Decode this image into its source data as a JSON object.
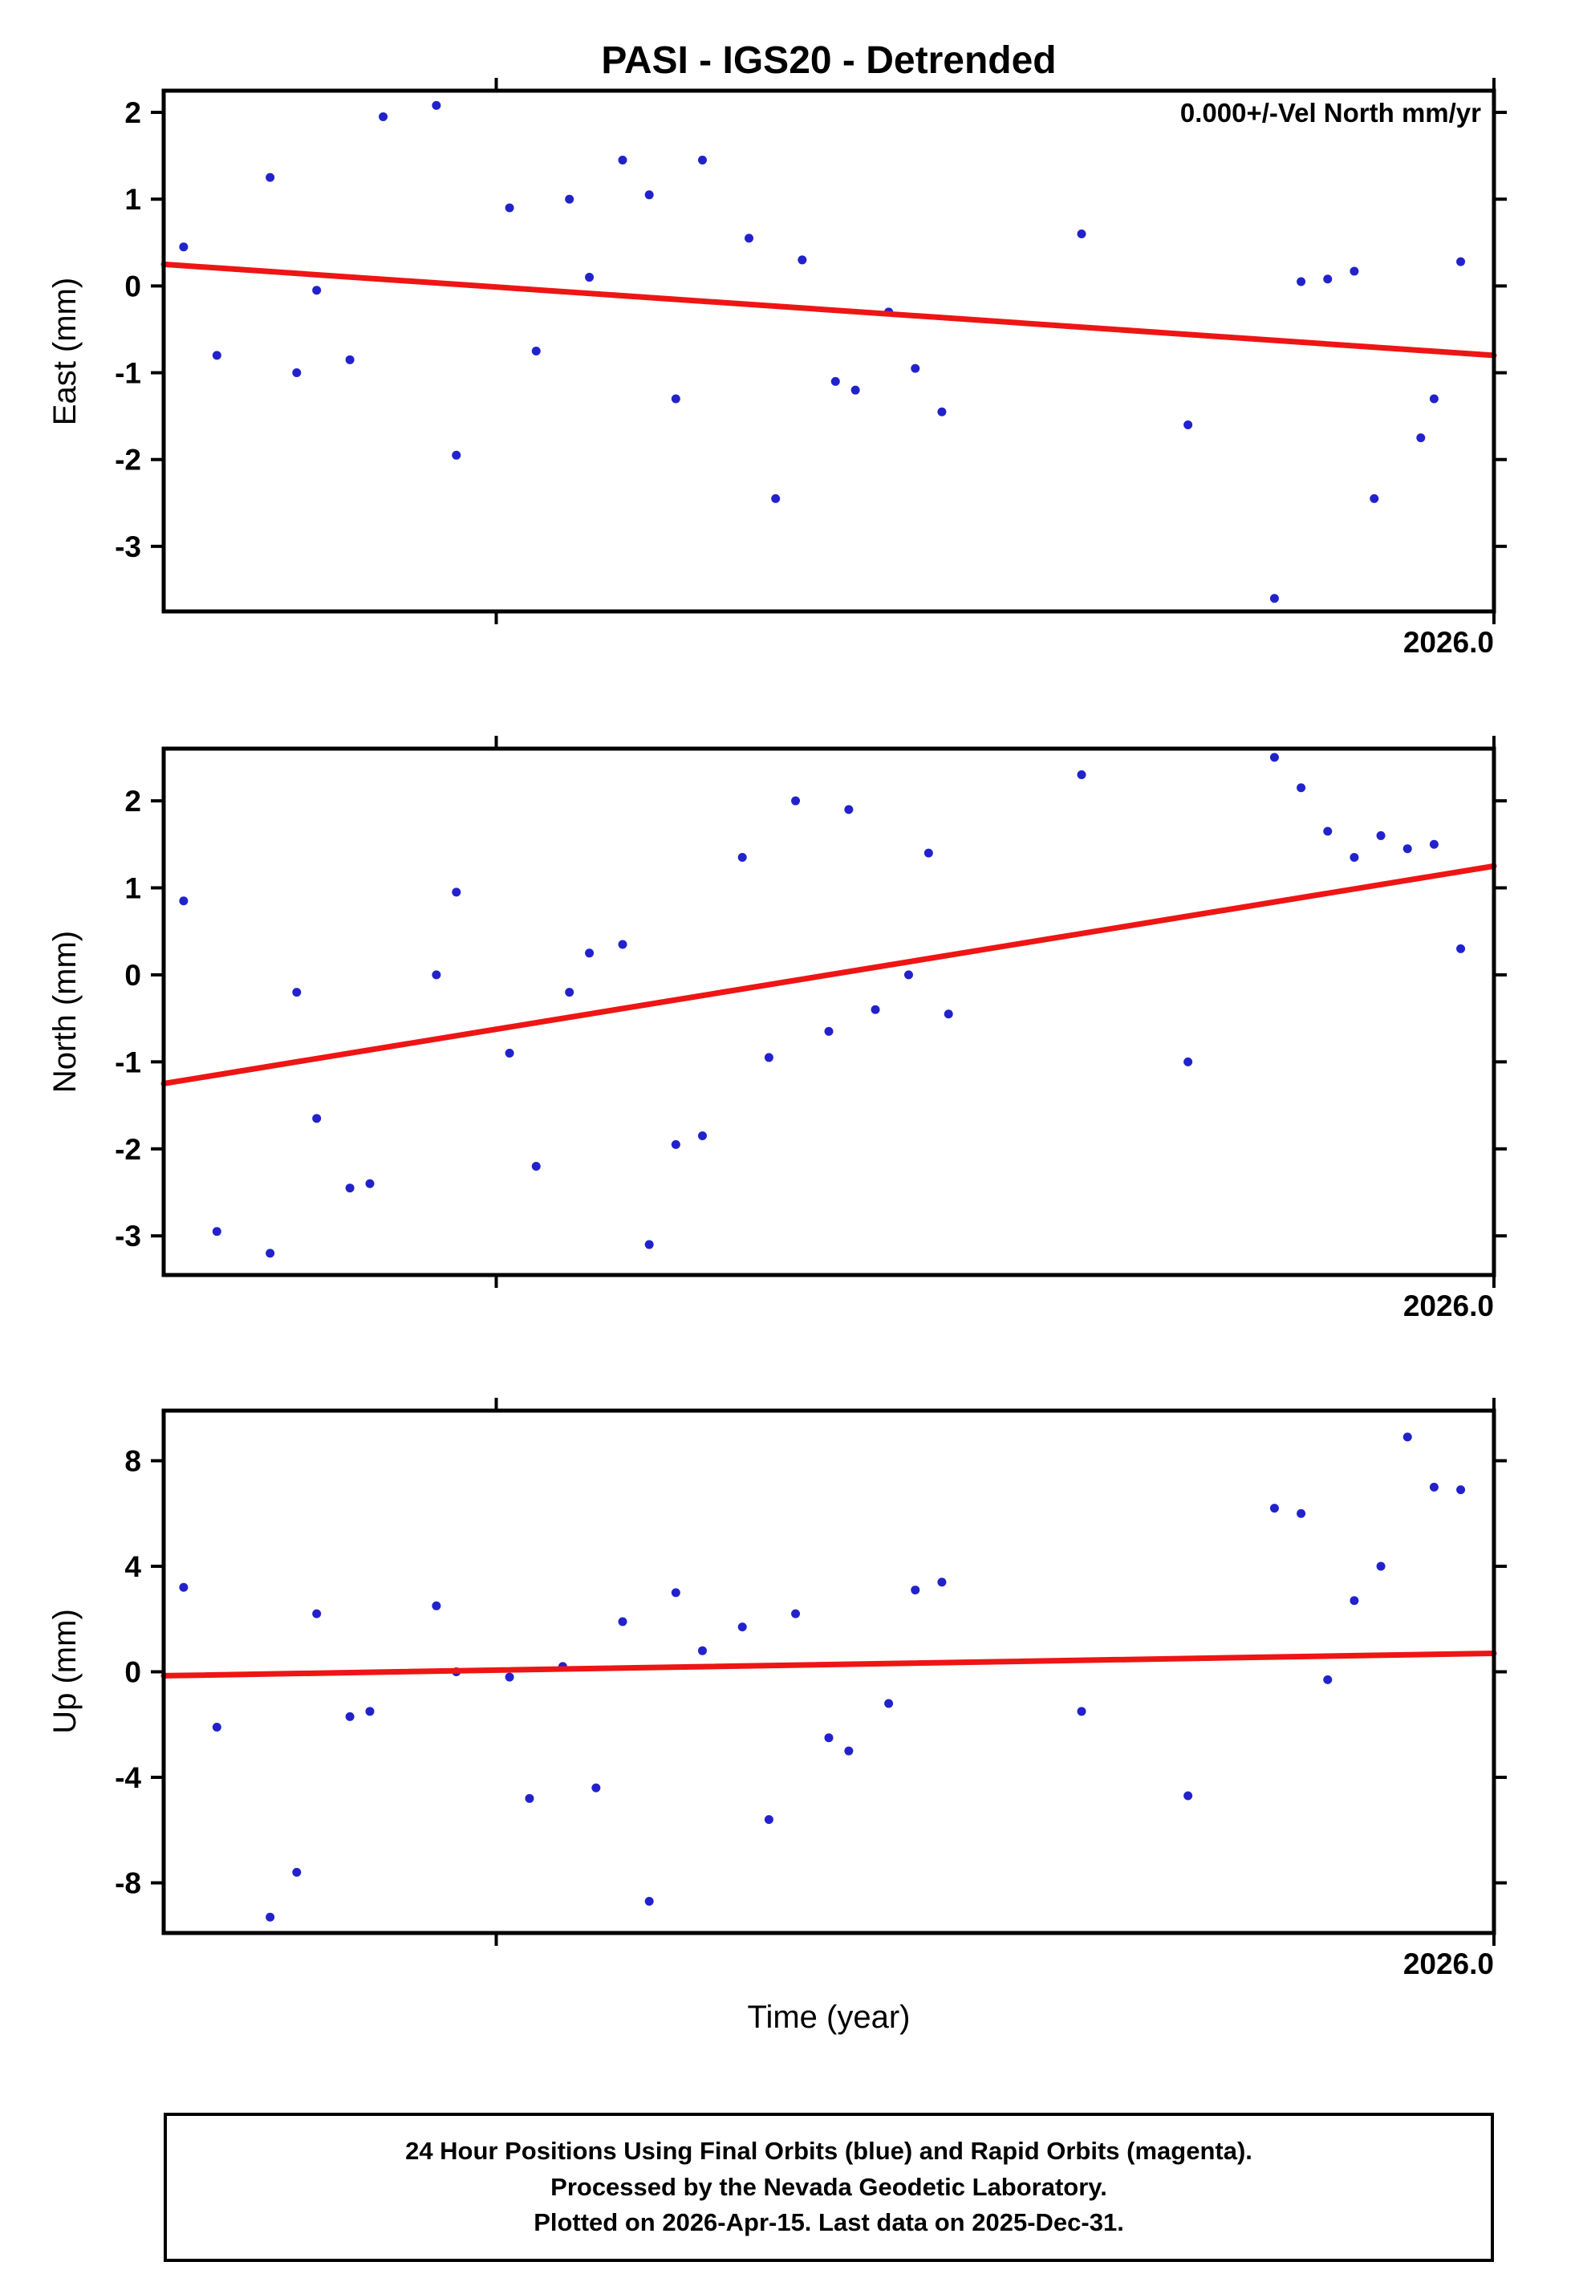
{
  "title": "PASI - IGS20 - Detrended",
  "annotation": "0.000+/-Vel North mm/yr",
  "xaxis_label": "Time (year)",
  "x_end_label": "2026.0",
  "footer": {
    "line1": "24 Hour Positions Using Final Orbits (blue) and Rapid Orbits (magenta).",
    "line2": "Processed by the Nevada Geodetic Laboratory.",
    "line3": "Plotted on 2026-Apr-15. Last data on 2025-Dec-31."
  },
  "chart_data": {
    "type": "scatter",
    "title": "PASI - IGS20 - Detrended",
    "x_axis_end_label": "2026.0",
    "x_units": "fraction of axis width (right edge = 2026.0)",
    "colors": {
      "points": "#2222cc",
      "trend": "#ee1515",
      "axis": "#000000"
    },
    "panels": [
      {
        "name": "East",
        "ylabel": "East (mm)",
        "ylim": [
          -3.75,
          2.25
        ],
        "yticks": [
          2,
          1,
          0,
          -1,
          -2,
          -3
        ],
        "xticks": [
          0.25,
          1.0
        ],
        "trend": [
          0.25,
          -0.8
        ],
        "points": [
          [
            0.015,
            0.45
          ],
          [
            0.04,
            -0.8
          ],
          [
            0.08,
            1.25
          ],
          [
            0.1,
            -1.0
          ],
          [
            0.115,
            -0.05
          ],
          [
            0.14,
            -0.85
          ],
          [
            0.165,
            1.95
          ],
          [
            0.205,
            2.08
          ],
          [
            0.22,
            -1.95
          ],
          [
            0.26,
            0.9
          ],
          [
            0.28,
            -0.75
          ],
          [
            0.305,
            1.0
          ],
          [
            0.32,
            0.1
          ],
          [
            0.345,
            1.45
          ],
          [
            0.365,
            1.05
          ],
          [
            0.385,
            -1.3
          ],
          [
            0.405,
            1.45
          ],
          [
            0.44,
            0.55
          ],
          [
            0.46,
            -2.45
          ],
          [
            0.48,
            0.3
          ],
          [
            0.505,
            -1.1
          ],
          [
            0.52,
            -1.2
          ],
          [
            0.545,
            -0.3
          ],
          [
            0.565,
            -0.95
          ],
          [
            0.585,
            -1.45
          ],
          [
            0.69,
            0.6
          ],
          [
            0.77,
            -1.6
          ],
          [
            0.835,
            -3.6
          ],
          [
            0.855,
            0.05
          ],
          [
            0.875,
            0.08
          ],
          [
            0.895,
            0.17
          ],
          [
            0.91,
            -2.45
          ],
          [
            0.945,
            -1.75
          ],
          [
            0.955,
            -1.3
          ],
          [
            0.975,
            0.28
          ]
        ]
      },
      {
        "name": "North",
        "ylabel": "North (mm)",
        "ylim": [
          -3.45,
          2.6
        ],
        "yticks": [
          2,
          1,
          0,
          -1,
          -2,
          -3
        ],
        "xticks": [
          0.25,
          1.0
        ],
        "trend": [
          -1.25,
          1.25
        ],
        "points": [
          [
            0.015,
            0.85
          ],
          [
            0.04,
            -2.95
          ],
          [
            0.08,
            -3.2
          ],
          [
            0.1,
            -0.2
          ],
          [
            0.115,
            -1.65
          ],
          [
            0.14,
            -2.45
          ],
          [
            0.155,
            -2.4
          ],
          [
            0.205,
            0.0
          ],
          [
            0.22,
            0.95
          ],
          [
            0.26,
            -0.9
          ],
          [
            0.28,
            -2.2
          ],
          [
            0.305,
            -0.2
          ],
          [
            0.32,
            0.25
          ],
          [
            0.345,
            0.35
          ],
          [
            0.365,
            -3.1
          ],
          [
            0.385,
            -1.95
          ],
          [
            0.405,
            -1.85
          ],
          [
            0.435,
            1.35
          ],
          [
            0.455,
            -0.95
          ],
          [
            0.475,
            2.0
          ],
          [
            0.5,
            -0.65
          ],
          [
            0.515,
            1.9
          ],
          [
            0.535,
            -0.4
          ],
          [
            0.56,
            0.0
          ],
          [
            0.575,
            1.4
          ],
          [
            0.59,
            -0.45
          ],
          [
            0.69,
            2.3
          ],
          [
            0.77,
            -1.0
          ],
          [
            0.835,
            2.5
          ],
          [
            0.855,
            2.15
          ],
          [
            0.875,
            1.65
          ],
          [
            0.895,
            1.35
          ],
          [
            0.915,
            1.6
          ],
          [
            0.935,
            1.45
          ],
          [
            0.955,
            1.5
          ],
          [
            0.975,
            0.3
          ]
        ]
      },
      {
        "name": "Up",
        "ylabel": "Up (mm)",
        "ylim": [
          -9.9,
          9.9
        ],
        "yticks": [
          8,
          4,
          0,
          -4,
          -8
        ],
        "xticks": [
          0.25,
          1.0
        ],
        "trend": [
          -0.15,
          0.7
        ],
        "points": [
          [
            0.015,
            3.2
          ],
          [
            0.04,
            -2.1
          ],
          [
            0.08,
            -9.3
          ],
          [
            0.1,
            -7.6
          ],
          [
            0.115,
            2.2
          ],
          [
            0.14,
            -1.7
          ],
          [
            0.155,
            -1.5
          ],
          [
            0.205,
            2.5
          ],
          [
            0.22,
            0.0
          ],
          [
            0.26,
            -0.2
          ],
          [
            0.275,
            -4.8
          ],
          [
            0.3,
            0.2
          ],
          [
            0.325,
            -4.4
          ],
          [
            0.345,
            1.9
          ],
          [
            0.365,
            -8.7
          ],
          [
            0.385,
            3.0
          ],
          [
            0.405,
            0.8
          ],
          [
            0.435,
            1.7
          ],
          [
            0.455,
            -5.6
          ],
          [
            0.475,
            2.2
          ],
          [
            0.5,
            -2.5
          ],
          [
            0.515,
            -3.0
          ],
          [
            0.545,
            -1.2
          ],
          [
            0.565,
            3.1
          ],
          [
            0.585,
            3.4
          ],
          [
            0.69,
            -1.5
          ],
          [
            0.77,
            -4.7
          ],
          [
            0.835,
            6.2
          ],
          [
            0.855,
            6.0
          ],
          [
            0.875,
            -0.3
          ],
          [
            0.895,
            2.7
          ],
          [
            0.915,
            4.0
          ],
          [
            0.935,
            8.9
          ],
          [
            0.955,
            7.0
          ],
          [
            0.975,
            6.9
          ]
        ]
      }
    ]
  }
}
